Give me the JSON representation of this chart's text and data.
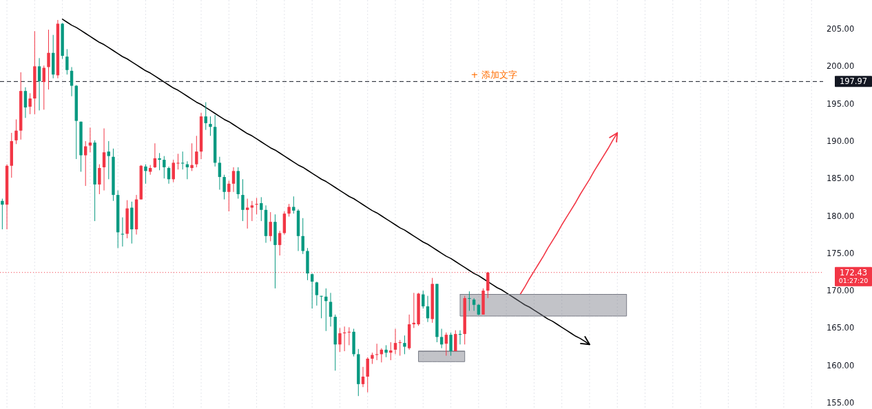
{
  "chart_data": {
    "type": "candlestick",
    "categories": [
      null,
      null,
      null,
      null,
      null,
      null,
      null,
      null,
      null,
      null,
      null,
      null,
      null,
      null,
      null,
      null,
      null,
      null,
      null,
      null,
      null,
      null,
      null,
      null,
      null,
      null,
      null,
      null,
      null,
      null,
      null,
      null,
      null,
      null,
      null,
      null,
      null,
      null,
      null,
      null,
      null,
      null,
      null,
      null,
      null,
      null,
      null,
      null,
      null,
      null,
      null,
      null,
      null,
      null,
      null,
      null,
      null,
      null,
      null,
      null,
      null,
      null,
      null,
      null,
      null,
      null,
      null,
      null,
      null,
      null,
      null,
      null,
      null,
      null,
      null,
      null,
      null,
      null,
      null,
      null,
      null,
      null,
      null,
      null,
      null,
      null,
      null,
      null,
      null,
      null,
      null,
      null,
      null,
      null,
      null,
      null,
      null,
      null,
      null,
      null,
      null,
      null,
      null,
      null,
      null,
      null,
      null,
      null,
      null,
      null,
      null,
      null,
      null,
      null,
      null,
      null,
      null,
      null,
      null,
      null,
      null,
      null,
      null,
      null,
      null,
      null,
      null,
      null,
      null,
      null,
      null,
      null,
      null,
      null,
      null,
      null,
      null,
      null,
      null,
      null,
      null,
      null,
      null,
      null,
      null,
      null,
      null,
      null,
      null,
      null,
      null,
      null,
      null,
      null,
      null,
      null,
      null,
      null,
      null,
      null,
      null,
      null,
      null,
      null,
      null,
      null,
      null,
      null,
      null,
      null,
      null,
      null,
      null,
      null,
      null,
      null,
      null,
      null
    ],
    "ohlc": [
      [
        182.0,
        182.3,
        178.2,
        181.5
      ],
      [
        181.5,
        186.9,
        178.2,
        186.7
      ],
      [
        186.7,
        191.1,
        185.1,
        190.0
      ],
      [
        190.1,
        192.9,
        189.6,
        191.4
      ],
      [
        191.4,
        199.2,
        190.2,
        196.7
      ],
      [
        196.7,
        197.2,
        193.1,
        194.5
      ],
      [
        194.6,
        196.4,
        193.6,
        195.7
      ],
      [
        195.7,
        204.7,
        193.6,
        200.0
      ],
      [
        200.0,
        201.1,
        194.1,
        198.0
      ],
      [
        197.9,
        200.1,
        194.2,
        199.8
      ],
      [
        199.9,
        204.9,
        196.9,
        201.8
      ],
      [
        201.8,
        204.2,
        198.4,
        198.9
      ],
      [
        198.8,
        206.2,
        198.4,
        205.7
      ],
      [
        205.7,
        205.8,
        201.0,
        201.4
      ],
      [
        201.3,
        202.3,
        198.9,
        199.5
      ],
      [
        199.4,
        199.9,
        196.0,
        197.4
      ],
      [
        197.4,
        197.5,
        187.6,
        192.7
      ],
      [
        192.6,
        192.6,
        185.9,
        188.1
      ],
      [
        188.1,
        190.0,
        184.0,
        189.3
      ],
      [
        189.4,
        191.8,
        188.5,
        189.8
      ],
      [
        189.8,
        190.1,
        179.3,
        184.2
      ],
      [
        184.2,
        186.9,
        182.9,
        186.4
      ],
      [
        186.5,
        191.7,
        183.4,
        188.5
      ],
      [
        188.6,
        190.0,
        184.9,
        188.0
      ],
      [
        187.9,
        189.0,
        182.0,
        182.8
      ],
      [
        182.8,
        183.4,
        175.7,
        177.8
      ],
      [
        177.6,
        179.8,
        175.9,
        177.5
      ],
      [
        177.6,
        182.1,
        177.0,
        181.0
      ],
      [
        181.1,
        181.9,
        176.3,
        178.2
      ],
      [
        178.2,
        182.8,
        177.5,
        182.2
      ],
      [
        182.2,
        186.8,
        182.2,
        186.7
      ],
      [
        186.6,
        186.9,
        184.3,
        186.0
      ],
      [
        185.9,
        186.8,
        185.5,
        186.4
      ],
      [
        186.5,
        189.7,
        186.4,
        187.7
      ],
      [
        187.7,
        188.4,
        186.1,
        187.5
      ],
      [
        187.5,
        188.0,
        185.0,
        186.5
      ],
      [
        186.4,
        186.6,
        184.3,
        184.9
      ],
      [
        184.9,
        187.5,
        184.5,
        187.1
      ],
      [
        187.0,
        188.3,
        186.2,
        187.1
      ],
      [
        187.1,
        188.6,
        186.2,
        187.0
      ],
      [
        186.9,
        187.3,
        184.9,
        186.5
      ],
      [
        186.4,
        189.7,
        186.0,
        186.8
      ],
      [
        186.9,
        190.7,
        186.5,
        188.6
      ],
      [
        188.6,
        193.8,
        187.6,
        193.3
      ],
      [
        193.3,
        195.2,
        191.5,
        192.4
      ],
      [
        192.3,
        193.3,
        190.7,
        191.9
      ],
      [
        191.9,
        193.5,
        186.6,
        187.1
      ],
      [
        187.1,
        187.9,
        183.5,
        185.2
      ],
      [
        185.2,
        185.5,
        182.2,
        183.2
      ],
      [
        183.2,
        184.7,
        180.6,
        184.3
      ],
      [
        184.3,
        186.5,
        183.2,
        186.0
      ],
      [
        186.0,
        186.5,
        182.3,
        182.9
      ],
      [
        182.8,
        184.9,
        179.3,
        180.8
      ],
      [
        180.8,
        182.3,
        178.3,
        181.1
      ],
      [
        181.1,
        182.0,
        179.3,
        181.4
      ],
      [
        181.5,
        182.4,
        180.2,
        181.6
      ],
      [
        181.7,
        182.5,
        179.3,
        180.8
      ],
      [
        180.8,
        181.4,
        176.4,
        177.3
      ],
      [
        177.3,
        180.5,
        176.6,
        179.2
      ],
      [
        179.2,
        180.2,
        170.3,
        176.1
      ],
      [
        176.1,
        178.0,
        174.7,
        177.7
      ],
      [
        177.7,
        180.6,
        177.5,
        180.3
      ],
      [
        180.3,
        181.6,
        179.9,
        181.2
      ],
      [
        181.2,
        182.6,
        180.3,
        180.7
      ],
      [
        180.7,
        180.9,
        175.3,
        177.3
      ],
      [
        177.3,
        179.7,
        174.9,
        175.3
      ],
      [
        175.3,
        175.7,
        171.4,
        172.3
      ],
      [
        172.2,
        172.3,
        167.6,
        171.2
      ],
      [
        171.1,
        171.2,
        168.0,
        169.4
      ],
      [
        169.3,
        169.3,
        166.3,
        169.2
      ],
      [
        169.2,
        170.3,
        164.6,
        168.6
      ],
      [
        168.5,
        169.7,
        165.2,
        166.5
      ],
      [
        166.5,
        166.8,
        159.3,
        162.8
      ],
      [
        162.8,
        165.0,
        161.8,
        164.3
      ],
      [
        164.3,
        165.2,
        161.9,
        164.4
      ],
      [
        164.4,
        165.1,
        162.7,
        164.5
      ],
      [
        164.5,
        164.9,
        161.2,
        161.5
      ],
      [
        161.5,
        162.2,
        155.9,
        157.5
      ],
      [
        157.5,
        159.8,
        157.1,
        158.5
      ],
      [
        158.5,
        161.1,
        156.4,
        160.9
      ],
      [
        160.9,
        161.7,
        160.2,
        161.4
      ],
      [
        161.4,
        162.9,
        160.7,
        161.5
      ],
      [
        161.5,
        162.3,
        160.4,
        162.1
      ],
      [
        162.1,
        162.7,
        161.1,
        161.7
      ],
      [
        161.7,
        163.1,
        160.7,
        162.0
      ],
      [
        162.1,
        164.9,
        161.5,
        163.0
      ],
      [
        163.0,
        163.4,
        161.3,
        163.1
      ],
      [
        163.0,
        164.0,
        161.5,
        162.5
      ],
      [
        162.3,
        166.8,
        162.1,
        165.5
      ],
      [
        165.5,
        169.7,
        165.0,
        165.7
      ],
      [
        165.5,
        169.7,
        165.3,
        169.6
      ],
      [
        169.5,
        170.0,
        167.6,
        167.9
      ],
      [
        167.9,
        169.3,
        165.8,
        166.3
      ],
      [
        166.2,
        171.7,
        165.7,
        170.9
      ],
      [
        170.9,
        170.9,
        163.1,
        163.8
      ],
      [
        163.8,
        164.9,
        162.3,
        162.8
      ],
      [
        162.9,
        164.4,
        161.3,
        164.1
      ],
      [
        164.1,
        164.4,
        161.3,
        161.9
      ],
      [
        161.9,
        164.7,
        161.9,
        164.2
      ],
      [
        164.2,
        164.7,
        162.8,
        164.1
      ],
      [
        164.2,
        169.3,
        162.8,
        169.0
      ],
      [
        169.0,
        169.9,
        167.3,
        168.9
      ],
      [
        168.8,
        169.0,
        167.3,
        168.1
      ],
      [
        168.1,
        168.2,
        166.7,
        166.8
      ],
      [
        166.8,
        170.3,
        166.8,
        170.0
      ],
      [
        170.0,
        172.5,
        169.0,
        172.43
      ],
      null,
      null,
      null,
      null,
      null,
      null,
      null,
      null,
      null,
      null,
      null,
      null,
      null,
      null,
      null,
      null,
      null,
      null,
      null,
      null,
      null,
      null,
      null,
      null,
      null,
      null,
      null,
      null,
      null,
      null,
      null,
      null,
      null,
      null,
      null,
      null,
      null,
      null,
      null,
      null,
      null,
      null,
      null,
      null,
      null,
      null,
      null,
      null,
      null,
      null,
      null,
      null,
      null,
      null,
      null,
      null,
      null,
      null,
      null,
      null,
      null,
      null,
      null,
      null,
      null,
      null,
      null,
      null,
      null,
      null,
      null,
      null
    ],
    "colors": [
      "#089981",
      "#f23645",
      "#f23645",
      "#f23645",
      "#f23645",
      "#089981",
      "#f23645",
      "#f23645",
      "#089981",
      "#f23645",
      "#f23645",
      "#089981",
      "#f23645",
      "#089981",
      "#089981",
      "#089981",
      "#089981",
      "#089981",
      "#f23645",
      "#f23645",
      "#089981",
      "#f23645",
      "#f23645",
      "#089981",
      "#089981",
      "#089981",
      "#089981",
      "#f23645",
      "#089981",
      "#f23645",
      "#f23645",
      "#089981",
      "#f23645",
      "#f23645",
      "#089981",
      "#089981",
      "#089981",
      "#f23645",
      "#f23645",
      "#089981",
      "#089981",
      "#f23645",
      "#f23645",
      "#f23645",
      "#089981",
      "#089981",
      "#089981",
      "#089981",
      "#089981",
      "#f23645",
      "#f23645",
      "#089981",
      "#089981",
      "#f23645",
      "#f23645",
      "#f23645",
      "#089981",
      "#089981",
      "#f23645",
      "#089981",
      "#f23645",
      "#f23645",
      "#f23645",
      "#089981",
      "#089981",
      "#089981",
      "#089981",
      "#089981",
      "#089981",
      "#089981",
      "#089981",
      "#089981",
      "#089981",
      "#f23645",
      "#f23645",
      "#f23645",
      "#089981",
      "#089981",
      "#f23645",
      "#f23645",
      "#f23645",
      "#f23645",
      "#f23645",
      "#089981",
      "#f23645",
      "#f23645",
      "#f23645",
      "#089981",
      "#f23645",
      "#f23645",
      "#f23645",
      "#089981",
      "#089981",
      "#f23645",
      "#089981",
      "#089981",
      "#f23645",
      "#089981",
      "#f23645",
      "#089981",
      "#f23645",
      "#089981",
      "#089981",
      "#089981",
      "#f23645",
      "#f23645",
      null,
      null,
      null,
      null,
      null,
      null,
      null,
      null,
      null,
      null,
      null,
      null,
      null,
      null,
      null,
      null,
      null,
      null,
      null,
      null,
      null,
      null,
      null,
      null,
      null,
      null,
      null,
      null,
      null,
      null,
      null,
      null,
      null,
      null,
      null,
      null,
      null,
      null,
      null,
      null,
      null,
      null,
      null,
      null,
      null,
      null,
      null,
      null,
      null,
      null,
      null,
      null,
      null,
      null,
      null,
      null,
      null,
      null,
      null,
      null,
      null,
      null,
      null,
      null,
      null,
      null,
      null,
      null,
      null,
      null,
      null,
      null
    ],
    "ylim": [
      154.17,
      208.87
    ],
    "yticks": [
      {
        "value": 155,
        "label": "155.00"
      },
      {
        "value": 160,
        "label": "160.00"
      },
      {
        "value": 165,
        "label": "165.00"
      },
      {
        "value": 170,
        "label": "170.00"
      },
      {
        "value": 175,
        "label": "175.00"
      },
      {
        "value": 180,
        "label": "180.00"
      },
      {
        "value": 185,
        "label": "185.00"
      },
      {
        "value": 190,
        "label": "190.00"
      },
      {
        "value": 195,
        "label": "195.00"
      },
      {
        "value": 200,
        "label": "200.00"
      },
      {
        "value": 205,
        "label": "205.00"
      }
    ],
    "tick_labels": "y",
    "grid": "x",
    "series": [
      {
        "type": "line",
        "color": "#000000",
        "values": [
          null,
          null,
          null,
          null,
          null,
          null,
          null,
          null,
          null,
          null,
          null,
          null,
          null,
          206.3,
          205.9,
          205.5,
          205.2,
          204.8,
          204.4,
          204.0,
          203.6,
          203.2,
          202.9,
          202.5,
          202.1,
          201.7,
          201.3,
          201.0,
          200.6,
          200.2,
          199.8,
          199.4,
          199.1,
          198.7,
          198.3,
          197.9,
          197.5,
          197.1,
          196.8,
          196.4,
          196.0,
          195.6,
          195.2,
          194.9,
          194.5,
          194.1,
          193.7,
          193.3,
          192.9,
          192.6,
          192.2,
          191.8,
          191.4,
          191.0,
          190.7,
          190.3,
          189.9,
          189.5,
          189.1,
          188.8,
          188.4,
          188.0,
          187.6,
          187.2,
          186.8,
          186.5,
          186.1,
          185.7,
          185.3,
          184.9,
          184.6,
          184.2,
          183.8,
          183.4,
          183.0,
          182.6,
          182.3,
          181.9,
          181.5,
          181.1,
          180.7,
          180.4,
          180.0,
          179.6,
          179.2,
          178.8,
          178.4,
          178.1,
          177.7,
          177.3,
          176.9,
          176.5,
          176.2,
          175.8,
          175.4,
          175.0,
          174.6,
          174.3,
          173.9,
          173.5,
          173.1,
          172.7,
          172.3,
          172.0,
          171.6,
          171.2,
          170.8,
          170.4,
          170.1,
          169.7,
          169.3,
          168.9,
          168.5,
          168.1,
          167.8,
          167.4,
          167.0,
          166.6,
          166.2,
          165.9,
          165.5,
          165.1,
          164.7,
          164.3,
          163.9,
          163.6,
          163.2,
          162.8,
          null,
          null,
          null,
          null,
          null,
          null,
          null,
          null,
          null,
          null,
          null,
          null,
          null,
          null,
          null,
          null,
          null,
          null,
          null,
          null,
          null,
          null,
          null,
          null,
          null,
          null,
          null,
          null,
          null,
          null,
          null,
          null,
          null,
          null,
          null,
          null,
          null,
          null,
          null,
          null,
          null,
          null,
          null,
          null,
          null,
          null,
          null,
          null,
          null,
          null
        ]
      },
      {
        "type": "line",
        "color": "#f23645",
        "values": [
          null,
          null,
          null,
          null,
          null,
          null,
          null,
          null,
          null,
          null,
          null,
          null,
          null,
          null,
          null,
          null,
          null,
          null,
          null,
          null,
          null,
          null,
          null,
          null,
          null,
          null,
          null,
          null,
          null,
          null,
          null,
          null,
          null,
          null,
          null,
          null,
          null,
          null,
          null,
          null,
          null,
          null,
          null,
          null,
          null,
          null,
          null,
          null,
          null,
          null,
          null,
          null,
          null,
          null,
          null,
          null,
          null,
          null,
          null,
          null,
          null,
          null,
          null,
          null,
          null,
          null,
          null,
          null,
          null,
          null,
          null,
          null,
          null,
          null,
          null,
          null,
          null,
          null,
          null,
          null,
          null,
          null,
          null,
          null,
          null,
          null,
          null,
          null,
          null,
          null,
          null,
          null,
          null,
          null,
          null,
          null,
          null,
          null,
          null,
          null,
          null,
          null,
          null,
          null,
          null,
          null,
          null,
          null,
          null,
          null,
          null,
          null,
          169.5,
          170.5,
          171.6,
          172.6,
          173.6,
          174.6,
          175.7,
          176.7,
          177.7,
          178.8,
          179.8,
          180.8,
          181.8,
          182.9,
          183.9,
          184.9,
          186.0,
          187.0,
          188.0,
          189.0,
          190.1,
          191.1,
          null,
          null,
          null,
          null,
          null,
          null,
          null,
          null,
          null,
          null,
          null,
          null,
          null,
          null,
          null,
          null,
          null,
          null,
          null,
          null,
          null,
          null,
          null,
          null,
          null,
          null,
          null,
          null,
          null,
          null,
          null,
          null,
          null,
          null,
          null,
          null,
          null,
          null,
          null,
          null,
          null,
          null,
          null,
          null
        ]
      },
      {
        "type": "line",
        "color": "#787b86",
        "values": [
          null,
          null,
          null,
          null,
          null,
          null,
          null,
          null,
          null,
          null,
          null,
          null,
          null,
          null,
          null,
          null,
          null,
          null,
          null,
          null,
          null,
          null,
          null,
          null,
          null,
          null,
          null,
          null,
          null,
          null,
          null,
          null,
          null,
          null,
          null,
          null,
          null,
          null,
          null,
          null,
          null,
          null,
          null,
          null,
          null,
          null,
          null,
          null,
          null,
          null,
          null,
          null,
          null,
          null,
          null,
          null,
          null,
          null,
          null,
          null,
          null,
          null,
          null,
          null,
          null,
          null,
          null,
          null,
          null,
          null,
          null,
          null,
          null,
          null,
          null,
          null,
          null,
          null,
          null,
          null,
          null,
          null,
          null,
          null,
          null,
          null,
          null,
          null,
          null,
          null,
          null,
          null,
          null,
          null,
          null,
          null,
          null,
          null,
          null,
          169.5,
          169.5,
          169.5,
          169.5,
          169.5,
          169.5,
          169.5,
          169.5,
          169.5,
          169.5,
          169.5,
          169.5,
          169.5,
          169.5,
          169.5,
          169.5,
          169.5,
          169.5,
          169.5,
          169.5,
          169.5,
          169.5,
          169.5,
          169.5,
          169.5,
          169.5,
          169.5,
          169.5,
          169.5,
          169.5,
          169.5,
          169.5,
          169.5,
          169.5,
          169.5,
          169.5,
          169.5,
          null,
          null,
          null,
          null,
          null,
          null,
          null,
          null,
          null,
          null,
          null,
          null,
          null,
          null,
          null,
          null,
          null,
          null,
          null,
          null,
          null,
          null,
          null,
          null,
          null,
          null,
          null,
          null,
          null,
          null,
          null,
          null,
          null,
          null,
          null,
          null,
          null,
          null,
          null,
          null,
          null,
          null
        ],
        "lower": [
          null,
          null,
          null,
          null,
          null,
          null,
          null,
          null,
          null,
          null,
          null,
          null,
          null,
          null,
          null,
          null,
          null,
          null,
          null,
          null,
          null,
          null,
          null,
          null,
          null,
          null,
          null,
          null,
          null,
          null,
          null,
          null,
          null,
          null,
          null,
          null,
          null,
          null,
          null,
          null,
          null,
          null,
          null,
          null,
          null,
          null,
          null,
          null,
          null,
          null,
          null,
          null,
          null,
          null,
          null,
          null,
          null,
          null,
          null,
          null,
          null,
          null,
          null,
          null,
          null,
          null,
          null,
          null,
          null,
          null,
          null,
          null,
          null,
          null,
          null,
          null,
          null,
          null,
          null,
          null,
          null,
          null,
          null,
          null,
          null,
          null,
          null,
          null,
          null,
          null,
          null,
          null,
          null,
          null,
          null,
          null,
          null,
          null,
          null,
          166.6,
          166.6,
          166.6,
          166.6,
          166.6,
          166.6,
          166.6,
          166.6,
          166.6,
          166.6,
          166.6,
          166.6,
          166.6,
          166.6,
          166.6,
          166.6,
          166.6,
          166.6,
          166.6,
          166.6,
          166.6,
          166.6,
          166.6,
          166.6,
          166.6,
          166.6,
          166.6,
          166.6,
          166.6,
          166.6,
          166.6,
          166.6,
          166.6,
          166.6,
          166.6,
          166.6,
          166.6,
          null,
          null,
          null,
          null,
          null,
          null,
          null,
          null,
          null,
          null,
          null,
          null,
          null,
          null,
          null,
          null,
          null,
          null,
          null,
          null,
          null,
          null,
          null,
          null,
          null,
          null,
          null,
          null,
          null,
          null,
          null,
          null,
          null,
          null,
          null,
          null,
          null,
          null,
          null,
          null,
          null,
          null
        ],
        "upper": [
          null,
          null,
          null,
          null,
          null,
          null,
          null,
          null,
          null,
          null,
          null,
          null,
          null,
          null,
          null,
          null,
          null,
          null,
          null,
          null,
          null,
          null,
          null,
          null,
          null,
          null,
          null,
          null,
          null,
          null,
          null,
          null,
          null,
          null,
          null,
          null,
          null,
          null,
          null,
          null,
          null,
          null,
          null,
          null,
          null,
          null,
          null,
          null,
          null,
          null,
          null,
          null,
          null,
          null,
          null,
          null,
          null,
          null,
          null,
          null,
          null,
          null,
          null,
          null,
          null,
          null,
          null,
          null,
          null,
          null,
          null,
          null,
          null,
          null,
          null,
          null,
          null,
          null,
          null,
          null,
          null,
          null,
          null,
          null,
          null,
          null,
          null,
          null,
          null,
          null,
          null,
          null,
          null,
          null,
          null,
          null,
          null,
          null,
          null,
          169.5,
          169.5,
          169.5,
          169.5,
          169.5,
          169.5,
          169.5,
          169.5,
          169.5,
          169.5,
          169.5,
          169.5,
          169.5,
          169.5,
          169.5,
          169.5,
          169.5,
          169.5,
          169.5,
          169.5,
          169.5,
          169.5,
          169.5,
          169.5,
          169.5,
          169.5,
          169.5,
          169.5,
          169.5,
          169.5,
          169.5,
          169.5,
          169.5,
          169.5,
          169.5,
          169.5,
          169.5,
          null,
          null,
          null,
          null,
          null,
          null,
          null,
          null,
          null,
          null,
          null,
          null,
          null,
          null,
          null,
          null,
          null,
          null,
          null,
          null,
          null,
          null,
          null,
          null,
          null,
          null,
          null,
          null,
          null,
          null,
          null,
          null,
          null,
          null,
          null,
          null,
          null,
          null,
          null,
          null,
          null,
          null
        ]
      },
      {
        "type": "line",
        "color": "#787b86",
        "values": [
          null,
          null,
          null,
          null,
          null,
          null,
          null,
          null,
          null,
          null,
          null,
          null,
          null,
          null,
          null,
          null,
          null,
          null,
          null,
          null,
          null,
          null,
          null,
          null,
          null,
          null,
          null,
          null,
          null,
          null,
          null,
          null,
          null,
          null,
          null,
          null,
          null,
          null,
          null,
          null,
          null,
          null,
          null,
          null,
          null,
          null,
          null,
          null,
          null,
          null,
          null,
          null,
          null,
          null,
          null,
          null,
          null,
          null,
          null,
          null,
          null,
          null,
          null,
          null,
          null,
          null,
          null,
          null,
          null,
          null,
          null,
          null,
          null,
          null,
          null,
          null,
          null,
          null,
          null,
          null,
          null,
          null,
          null,
          null,
          null,
          null,
          null,
          null,
          null,
          null,
          161.9,
          161.9,
          161.9,
          161.9,
          161.9,
          161.9,
          161.9,
          161.9,
          161.9,
          161.9,
          161.9,
          null,
          null,
          null,
          null,
          null,
          null,
          null,
          null,
          null,
          null,
          null,
          null,
          null,
          null,
          null,
          null,
          null,
          null,
          null,
          null,
          null,
          null,
          null,
          null,
          null,
          null,
          null,
          null,
          null,
          null,
          null,
          null,
          null,
          null,
          null,
          null,
          null,
          null,
          null,
          null,
          null,
          null,
          null,
          null,
          null,
          null,
          null,
          null,
          null,
          null,
          null,
          null,
          null,
          null,
          null,
          null,
          null,
          null,
          null,
          null,
          null,
          null,
          null,
          null,
          null,
          null,
          null,
          null,
          null,
          null,
          null,
          null,
          null,
          null,
          null,
          null,
          null
        ],
        "lower": [
          null,
          null,
          null,
          null,
          null,
          null,
          null,
          null,
          null,
          null,
          null,
          null,
          null,
          null,
          null,
          null,
          null,
          null,
          null,
          null,
          null,
          null,
          null,
          null,
          null,
          null,
          null,
          null,
          null,
          null,
          null,
          null,
          null,
          null,
          null,
          null,
          null,
          null,
          null,
          null,
          null,
          null,
          null,
          null,
          null,
          null,
          null,
          null,
          null,
          null,
          null,
          null,
          null,
          null,
          null,
          null,
          null,
          null,
          null,
          null,
          null,
          null,
          null,
          null,
          null,
          null,
          null,
          null,
          null,
          null,
          null,
          null,
          null,
          null,
          null,
          null,
          null,
          null,
          null,
          null,
          null,
          null,
          null,
          null,
          null,
          null,
          null,
          null,
          null,
          null,
          160.5,
          160.5,
          160.5,
          160.5,
          160.5,
          160.5,
          160.5,
          160.5,
          160.5,
          160.5,
          160.5,
          null,
          null,
          null,
          null,
          null,
          null,
          null,
          null,
          null,
          null,
          null,
          null,
          null,
          null,
          null,
          null,
          null,
          null,
          null,
          null,
          null,
          null,
          null,
          null,
          null,
          null,
          null,
          null,
          null,
          null,
          null,
          null,
          null,
          null,
          null,
          null,
          null,
          null,
          null,
          null,
          null,
          null,
          null,
          null,
          null,
          null,
          null,
          null,
          null,
          null,
          null,
          null,
          null,
          null,
          null,
          null,
          null,
          null,
          null,
          null,
          null,
          null,
          null,
          null,
          null,
          null,
          null,
          null,
          null,
          null,
          null,
          null,
          null,
          null,
          null,
          null,
          null
        ],
        "upper": [
          null,
          null,
          null,
          null,
          null,
          null,
          null,
          null,
          null,
          null,
          null,
          null,
          null,
          null,
          null,
          null,
          null,
          null,
          null,
          null,
          null,
          null,
          null,
          null,
          null,
          null,
          null,
          null,
          null,
          null,
          null,
          null,
          null,
          null,
          null,
          null,
          null,
          null,
          null,
          null,
          null,
          null,
          null,
          null,
          null,
          null,
          null,
          null,
          null,
          null,
          null,
          null,
          null,
          null,
          null,
          null,
          null,
          null,
          null,
          null,
          null,
          null,
          null,
          null,
          null,
          null,
          null,
          null,
          null,
          null,
          null,
          null,
          null,
          null,
          null,
          null,
          null,
          null,
          null,
          null,
          null,
          null,
          null,
          null,
          null,
          null,
          null,
          null,
          null,
          null,
          161.9,
          161.9,
          161.9,
          161.9,
          161.9,
          161.9,
          161.9,
          161.9,
          161.9,
          161.9,
          161.9,
          null,
          null,
          null,
          null,
          null,
          null,
          null,
          null,
          null,
          null,
          null,
          null,
          null,
          null,
          null,
          null,
          null,
          null,
          null,
          null,
          null,
          null,
          null,
          null,
          null,
          null,
          null,
          null,
          null,
          null,
          null,
          null,
          null,
          null,
          null,
          null,
          null,
          null,
          null,
          null,
          null,
          null,
          null,
          null,
          null,
          null,
          null,
          null,
          null,
          null,
          null,
          null,
          null,
          null,
          null,
          null,
          null,
          null,
          null,
          null,
          null,
          null,
          null,
          null,
          null,
          null,
          null,
          null,
          null,
          null,
          null,
          null,
          null,
          null,
          null,
          null,
          null
        ]
      }
    ],
    "ref_lines": [
      {
        "axis": "y",
        "value": 197.97,
        "label": "197.97",
        "color": "#131722",
        "line_style": "dashed"
      },
      {
        "axis": "y",
        "value": 172.43,
        "label": "172.43",
        "color": "#f23645",
        "line_style": "dotted"
      }
    ],
    "annotations": [
      {
        "text": "+ 添加文字",
        "y": 197.97
      },
      "01:27:20"
    ]
  }
}
